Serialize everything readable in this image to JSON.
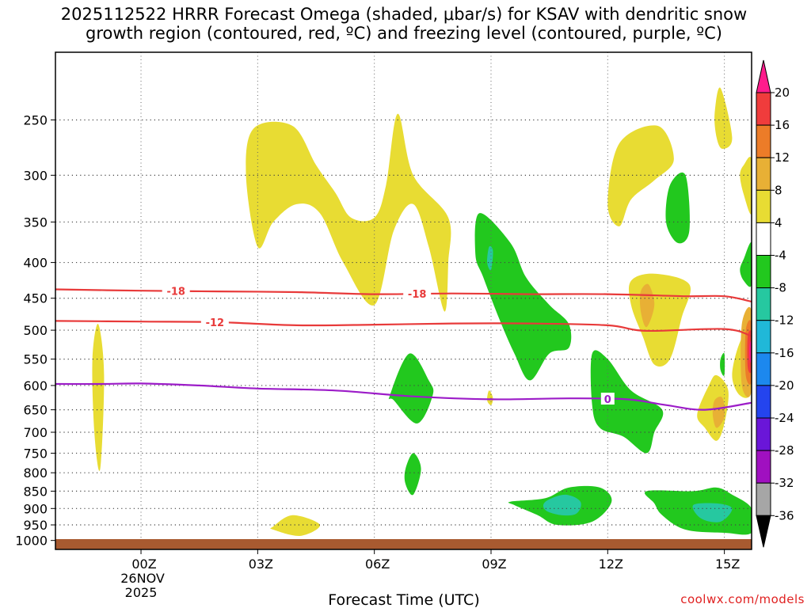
{
  "title_line1": "2025112522 HRRR Forecast Omega (shaded, μbar/s) for KSAV with dendritic snow",
  "title_line2": "growth region (contoured, red, ºC) and freezing level (contoured, purple, ºC)",
  "credit": "coolwx.com/models",
  "chart_data": {
    "type": "heatmap",
    "xlabel": "Forecast Time (UTC)",
    "x_ticks": [
      {
        "hour": 2,
        "label": "00Z",
        "sub1": "26NOV",
        "sub2": "2025"
      },
      {
        "hour": 5,
        "label": "03Z"
      },
      {
        "hour": 8,
        "label": "06Z"
      },
      {
        "hour": 11,
        "label": "09Z"
      },
      {
        "hour": 14,
        "label": "12Z"
      },
      {
        "hour": 17,
        "label": "15Z"
      }
    ],
    "x_range_hours": [
      -0.2,
      17.7
    ],
    "y_ticks": [
      250,
      300,
      350,
      400,
      450,
      500,
      550,
      600,
      650,
      700,
      750,
      800,
      850,
      900,
      950,
      1000
    ],
    "y_range_mb": [
      200,
      1030
    ],
    "colorbar": {
      "labels": [
        "20",
        "16",
        "12",
        "8",
        "4",
        "-4",
        "-8",
        "-12",
        "-16",
        "-20",
        "-24",
        "-28",
        "-32",
        "-36"
      ],
      "colors": [
        "#ff1c8c",
        "#f03c3c",
        "#ec7c28",
        "#e8b035",
        "#e8dc33",
        "#ffffff",
        "#22c81e",
        "#26c8a0",
        "#20b8d8",
        "#1c88ee",
        "#2444ee",
        "#6a16d8",
        "#a010c0",
        "#a6a6a6",
        "#000000"
      ]
    },
    "omega_regions": [
      {
        "level": "4",
        "color": "#e8dc33",
        "pts": [
          [
            0.9,
            490
          ],
          [
            1.05,
            580
          ],
          [
            0.95,
            790
          ],
          [
            0.8,
            700
          ],
          [
            0.75,
            550
          ]
        ]
      },
      {
        "level": "4",
        "color": "#e8dc33",
        "pts": [
          [
            4.9,
            257
          ],
          [
            5.9,
            255
          ],
          [
            6.5,
            290
          ],
          [
            7.0,
            318
          ],
          [
            7.4,
            345
          ],
          [
            8.0,
            345
          ],
          [
            8.3,
            310
          ],
          [
            8.6,
            245
          ],
          [
            9.0,
            300
          ],
          [
            9.9,
            345
          ],
          [
            9.9,
            400
          ],
          [
            9.8,
            470
          ],
          [
            9.4,
            380
          ],
          [
            9.0,
            330
          ],
          [
            8.5,
            360
          ],
          [
            8.0,
            460
          ],
          [
            7.2,
            400
          ],
          [
            6.6,
            340
          ],
          [
            6.0,
            330
          ],
          [
            5.4,
            350
          ],
          [
            5.0,
            380
          ],
          [
            4.7,
            300
          ]
        ]
      },
      {
        "level": "4",
        "color": "#e8dc33",
        "pts": [
          [
            5.4,
            955
          ],
          [
            5.9,
            920
          ],
          [
            6.6,
            950
          ],
          [
            6.1,
            985
          ],
          [
            5.4,
            965
          ]
        ]
      },
      {
        "level": "4",
        "color": "#e8dc33",
        "pts": [
          [
            14.3,
            270
          ],
          [
            15.3,
            255
          ],
          [
            15.7,
            285
          ],
          [
            15.2,
            305
          ],
          [
            14.6,
            325
          ],
          [
            14.3,
            355
          ],
          [
            14.0,
            330
          ]
        ]
      },
      {
        "level": "4",
        "color": "#e8dc33",
        "pts": [
          [
            16.75,
            245
          ],
          [
            16.9,
            225
          ],
          [
            17.2,
            265
          ],
          [
            16.95,
            275
          ],
          [
            16.8,
            265
          ]
        ]
      },
      {
        "level": "4",
        "color": "#e8dc33",
        "pts": [
          [
            17.5,
            290
          ],
          [
            17.7,
            285
          ],
          [
            17.7,
            340
          ],
          [
            17.5,
            320
          ],
          [
            17.4,
            300
          ]
        ]
      },
      {
        "level": "4",
        "color": "#e8dc33",
        "pts": [
          [
            14.6,
            425
          ],
          [
            15.2,
            415
          ],
          [
            16.1,
            430
          ],
          [
            15.9,
            480
          ],
          [
            15.6,
            550
          ],
          [
            15.2,
            560
          ],
          [
            14.9,
            510
          ],
          [
            14.6,
            460
          ]
        ]
      },
      {
        "level": "8",
        "color": "#e8b035",
        "pts": [
          [
            14.85,
            440
          ],
          [
            15.05,
            430
          ],
          [
            15.2,
            460
          ],
          [
            15.0,
            495
          ],
          [
            14.85,
            470
          ]
        ]
      },
      {
        "level": "4",
        "color": "#e8dc33",
        "pts": [
          [
            17.4,
            520
          ],
          [
            17.7,
            500
          ],
          [
            17.7,
            610
          ],
          [
            17.4,
            620
          ],
          [
            17.2,
            580
          ]
        ]
      },
      {
        "level": "4",
        "color": "#e8dc33",
        "pts": [
          [
            16.6,
            600
          ],
          [
            16.8,
            580
          ],
          [
            17.1,
            610
          ],
          [
            17.0,
            680
          ],
          [
            16.8,
            720
          ],
          [
            16.5,
            690
          ],
          [
            16.3,
            660
          ]
        ]
      },
      {
        "level": "8",
        "color": "#e8b035",
        "pts": [
          [
            16.75,
            630
          ],
          [
            16.95,
            625
          ],
          [
            17.0,
            665
          ],
          [
            16.8,
            690
          ],
          [
            16.7,
            660
          ]
        ]
      },
      {
        "level": "4",
        "color": "#e8dc33",
        "pts": [
          [
            10.95,
            610
          ],
          [
            11.05,
            625
          ],
          [
            11.0,
            640
          ],
          [
            10.9,
            630
          ]
        ]
      },
      {
        "level": "-4",
        "color": "#22c81e",
        "pts": [
          [
            10.7,
            340
          ],
          [
            11.5,
            375
          ],
          [
            11.9,
            420
          ],
          [
            12.5,
            460
          ],
          [
            13.0,
            490
          ],
          [
            13.0,
            530
          ],
          [
            12.5,
            540
          ],
          [
            12.0,
            590
          ],
          [
            11.6,
            540
          ],
          [
            11.2,
            480
          ],
          [
            10.8,
            420
          ],
          [
            10.6,
            390
          ]
        ]
      },
      {
        "level": "-8",
        "color": "#26c8a0",
        "pts": [
          [
            10.95,
            380
          ],
          [
            11.05,
            385
          ],
          [
            11.0,
            410
          ],
          [
            10.9,
            400
          ]
        ]
      },
      {
        "level": "-4",
        "color": "#22c81e",
        "pts": [
          [
            8.9,
            540
          ],
          [
            9.4,
            590
          ],
          [
            9.5,
            620
          ],
          [
            9.1,
            680
          ],
          [
            8.5,
            630
          ],
          [
            8.4,
            620
          ]
        ]
      },
      {
        "level": "-4",
        "color": "#22c81e",
        "pts": [
          [
            9.0,
            750
          ],
          [
            9.2,
            790
          ],
          [
            9.0,
            860
          ],
          [
            8.8,
            830
          ],
          [
            8.8,
            790
          ]
        ]
      },
      {
        "level": "-4",
        "color": "#22c81e",
        "pts": [
          [
            13.6,
            540
          ],
          [
            14.0,
            550
          ],
          [
            14.6,
            610
          ],
          [
            15.4,
            650
          ],
          [
            15.2,
            700
          ],
          [
            15.0,
            750
          ],
          [
            14.4,
            710
          ],
          [
            13.8,
            690
          ],
          [
            13.6,
            640
          ]
        ]
      },
      {
        "level": "-4",
        "color": "#22c81e",
        "pts": [
          [
            15.6,
            310
          ],
          [
            16.0,
            300
          ],
          [
            16.1,
            360
          ],
          [
            15.8,
            375
          ],
          [
            15.5,
            350
          ]
        ]
      },
      {
        "level": "-4",
        "color": "#22c81e",
        "pts": [
          [
            17.5,
            395
          ],
          [
            17.7,
            375
          ],
          [
            17.7,
            430
          ],
          [
            17.5,
            425
          ],
          [
            17.4,
            410
          ]
        ]
      },
      {
        "level": "-4",
        "color": "#22c81e",
        "pts": [
          [
            16.9,
            550
          ],
          [
            17.0,
            540
          ],
          [
            17.0,
            580
          ],
          [
            16.9,
            570
          ]
        ]
      },
      {
        "level": "-4",
        "color": "#22c81e",
        "pts": [
          [
            11.5,
            880
          ],
          [
            12.4,
            870
          ],
          [
            13.0,
            840
          ],
          [
            13.8,
            840
          ],
          [
            14.1,
            880
          ],
          [
            13.6,
            940
          ],
          [
            12.7,
            950
          ],
          [
            12.2,
            920
          ],
          [
            11.6,
            890
          ]
        ]
      },
      {
        "level": "-8",
        "color": "#26c8a0",
        "pts": [
          [
            12.4,
            880
          ],
          [
            12.9,
            860
          ],
          [
            13.3,
            880
          ],
          [
            13.2,
            915
          ],
          [
            12.8,
            920
          ],
          [
            12.4,
            905
          ]
        ]
      },
      {
        "level": "-4",
        "color": "#22c81e",
        "pts": [
          [
            15.0,
            850
          ],
          [
            16.2,
            850
          ],
          [
            16.8,
            840
          ],
          [
            17.2,
            860
          ],
          [
            17.7,
            900
          ],
          [
            17.7,
            975
          ],
          [
            17.0,
            975
          ],
          [
            16.0,
            965
          ],
          [
            15.4,
            920
          ],
          [
            15.2,
            885
          ]
        ]
      },
      {
        "level": "-8",
        "color": "#26c8a0",
        "pts": [
          [
            16.2,
            890
          ],
          [
            16.8,
            885
          ],
          [
            17.2,
            900
          ],
          [
            16.9,
            940
          ],
          [
            16.4,
            930
          ]
        ]
      },
      {
        "level": "8",
        "color": "#e8b035",
        "pts": [
          [
            17.45,
            490
          ],
          [
            17.7,
            470
          ],
          [
            17.7,
            610
          ],
          [
            17.45,
            600
          ]
        ]
      },
      {
        "level": "12",
        "color": "#ec7c28",
        "pts": [
          [
            17.55,
            500
          ],
          [
            17.7,
            490
          ],
          [
            17.7,
            590
          ],
          [
            17.55,
            580
          ]
        ]
      },
      {
        "level": "16",
        "color": "#f03c3c",
        "pts": [
          [
            17.6,
            510
          ],
          [
            17.7,
            505
          ],
          [
            17.7,
            570
          ],
          [
            17.6,
            565
          ]
        ]
      },
      {
        "level": "20",
        "color": "#ff1c8c",
        "pts": [
          [
            17.65,
            525
          ],
          [
            17.7,
            520
          ],
          [
            17.7,
            555
          ],
          [
            17.65,
            550
          ]
        ]
      }
    ],
    "temperature_contours": [
      {
        "value": "-18",
        "color": "#e83a3a",
        "label_hours": [
          2.9,
          9.1
        ],
        "pts": [
          [
            -0.2,
            437
          ],
          [
            2.0,
            439
          ],
          [
            4.0,
            440
          ],
          [
            6.0,
            441
          ],
          [
            8.0,
            444
          ],
          [
            10.0,
            443
          ],
          [
            12.0,
            444
          ],
          [
            14.0,
            444
          ],
          [
            16.0,
            447
          ],
          [
            17.0,
            447
          ],
          [
            17.7,
            455
          ]
        ]
      },
      {
        "value": "-12",
        "color": "#e83a3a",
        "label_hours": [
          3.9
        ],
        "pts": [
          [
            -0.2,
            485
          ],
          [
            2.0,
            486
          ],
          [
            4.0,
            487
          ],
          [
            6.0,
            492
          ],
          [
            8.0,
            491
          ],
          [
            10.0,
            489
          ],
          [
            12.0,
            489
          ],
          [
            14.0,
            492
          ],
          [
            15.0,
            501
          ],
          [
            17.0,
            498
          ],
          [
            17.7,
            510
          ]
        ]
      },
      {
        "value": "0",
        "color": "#9c1cc8",
        "label_hours": [
          14.0
        ],
        "pts": [
          [
            -0.2,
            597
          ],
          [
            1.0,
            597
          ],
          [
            2.0,
            596
          ],
          [
            3.5,
            600
          ],
          [
            5.0,
            606
          ],
          [
            7.0,
            610
          ],
          [
            9.0,
            622
          ],
          [
            11.0,
            628
          ],
          [
            13.0,
            626
          ],
          [
            14.5,
            628
          ],
          [
            15.5,
            640
          ],
          [
            16.5,
            650
          ],
          [
            17.7,
            635
          ]
        ]
      }
    ]
  }
}
